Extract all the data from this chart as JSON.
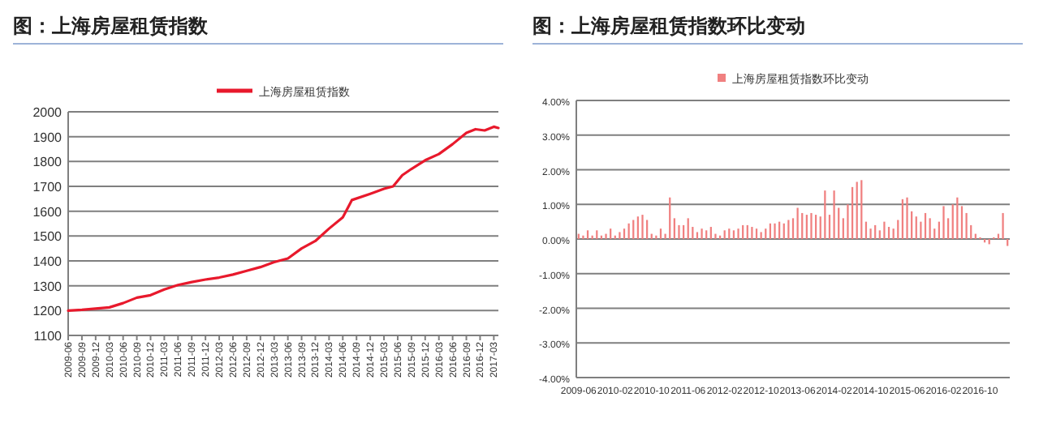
{
  "chart_data": [
    {
      "type": "line",
      "title": "图：上海房屋租赁指数",
      "legend": "top",
      "grid": "y",
      "line_style": "solid",
      "xlim": [
        "2009-06",
        "2017-04"
      ],
      "xticks": [
        "2009-06",
        "2009-09",
        "2009-12",
        "2010-03",
        "2010-06",
        "2010-09",
        "2010-12",
        "2011-03",
        "2011-06",
        "2011-09",
        "2011-12",
        "2012-03",
        "2012-06",
        "2012-09",
        "2012-12",
        "2013-03",
        "2013-06",
        "2013-09",
        "2013-12",
        "2014-03",
        "2014-06",
        "2014-09",
        "2014-12",
        "2015-03",
        "2015-06",
        "2015-09",
        "2015-12",
        "2016-03",
        "2016-06",
        "2016-09",
        "2016-12",
        "2017-03"
      ],
      "ylim": [
        1100,
        2000
      ],
      "yticks": [
        1100,
        1200,
        1300,
        1400,
        1500,
        1600,
        1700,
        1800,
        1900,
        2000
      ],
      "x": [
        "2009-06",
        "2009-09",
        "2009-12",
        "2010-03",
        "2010-06",
        "2010-09",
        "2010-12",
        "2011-03",
        "2011-06",
        "2011-09",
        "2011-12",
        "2012-03",
        "2012-06",
        "2012-09",
        "2012-12",
        "2013-03",
        "2013-06",
        "2013-09",
        "2013-12",
        "2014-03",
        "2014-06",
        "2014-08",
        "2014-12",
        "2015-03",
        "2015-05",
        "2015-07",
        "2015-09",
        "2015-12",
        "2016-03",
        "2016-06",
        "2016-09",
        "2016-11",
        "2017-01",
        "2017-03",
        "2017-04"
      ],
      "series": [
        {
          "name": "上海房屋租赁指数",
          "color": "#e8192c",
          "values": [
            1200,
            1203,
            1208,
            1213,
            1230,
            1252,
            1262,
            1285,
            1303,
            1315,
            1325,
            1333,
            1345,
            1360,
            1375,
            1395,
            1410,
            1450,
            1480,
            1530,
            1575,
            1645,
            1670,
            1690,
            1700,
            1745,
            1770,
            1805,
            1830,
            1870,
            1915,
            1930,
            1925,
            1940,
            1935
          ]
        }
      ]
    },
    {
      "type": "bar",
      "title": "图：上海房屋租赁指数环比变动",
      "legend": "top",
      "grid": "y",
      "categories": [
        "2009-06",
        null,
        null,
        null,
        null,
        null,
        null,
        null,
        "2010-02",
        null,
        null,
        null,
        null,
        null,
        null,
        null,
        "2010-10",
        null,
        null,
        null,
        null,
        null,
        null,
        null,
        "2011-06",
        null,
        null,
        null,
        null,
        null,
        null,
        null,
        "2012-02",
        null,
        null,
        null,
        null,
        null,
        null,
        null,
        "2012-10",
        null,
        null,
        null,
        null,
        null,
        null,
        null,
        "2013-06",
        null,
        null,
        null,
        null,
        null,
        null,
        null,
        "2014-02",
        null,
        null,
        null,
        null,
        null,
        null,
        null,
        "2014-10",
        null,
        null,
        null,
        null,
        null,
        null,
        null,
        "2015-06",
        null,
        null,
        null,
        null,
        null,
        null,
        null,
        "2016-02",
        null,
        null,
        null,
        null,
        null,
        null,
        null,
        "2016-10",
        null,
        null,
        null,
        null,
        null,
        null
      ],
      "ylim": [
        -4,
        4
      ],
      "yticks": [
        {
          "value": -4,
          "label": "-4.00%"
        },
        {
          "value": -3,
          "label": "-3.00%"
        },
        {
          "value": -2,
          "label": "-2.00%"
        },
        {
          "value": -1,
          "label": "-1.00%"
        },
        {
          "value": 0,
          "label": "0.00%"
        },
        {
          "value": 1,
          "label": "1.00%"
        },
        {
          "value": 2,
          "label": "2.00%"
        },
        {
          "value": 3,
          "label": "3.00%"
        },
        {
          "value": 4,
          "label": "4.00%"
        }
      ],
      "series": [
        {
          "name": "上海房屋租赁指数环比变动",
          "color": "#f08080",
          "values": [
            0.15,
            0.1,
            0.25,
            0.1,
            0.25,
            0.1,
            0.15,
            0.3,
            0.1,
            0.2,
            0.3,
            0.45,
            0.55,
            0.65,
            0.7,
            0.55,
            0.15,
            0.1,
            0.3,
            0.15,
            1.2,
            0.6,
            0.4,
            0.4,
            0.6,
            0.35,
            0.2,
            0.3,
            0.25,
            0.35,
            0.15,
            0.1,
            0.25,
            0.3,
            0.25,
            0.3,
            0.4,
            0.4,
            0.35,
            0.3,
            0.2,
            0.3,
            0.45,
            0.45,
            0.5,
            0.45,
            0.55,
            0.6,
            0.9,
            0.75,
            0.7,
            0.75,
            0.7,
            0.65,
            1.4,
            0.7,
            1.4,
            0.9,
            0.6,
            1.0,
            1.5,
            1.65,
            1.7,
            0.5,
            0.3,
            0.4,
            0.25,
            0.5,
            0.35,
            0.3,
            0.55,
            1.15,
            1.2,
            0.8,
            0.65,
            0.5,
            0.75,
            0.6,
            0.3,
            0.5,
            0.95,
            0.6,
            1.0,
            1.2,
            0.95,
            0.75,
            0.4,
            0.15,
            0.05,
            -0.1,
            -0.15,
            0.05,
            0.15,
            0.75,
            -0.2
          ]
        }
      ]
    }
  ]
}
